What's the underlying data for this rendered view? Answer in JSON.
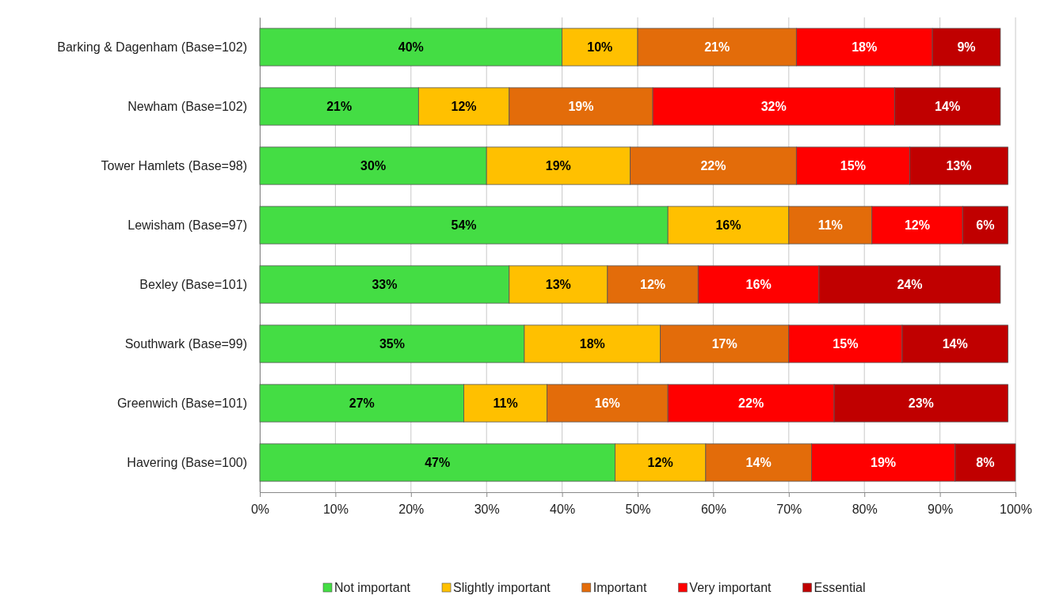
{
  "chart_data": {
    "type": "bar",
    "orientation": "horizontal",
    "stacked": true,
    "categories": [
      "Barking & Dagenham (Base=102)",
      "Newham (Base=102)",
      "Tower Hamlets (Base=98)",
      "Lewisham (Base=97)",
      "Bexley (Base=101)",
      "Southwark (Base=99)",
      "Greenwich (Base=101)",
      "Havering (Base=100)"
    ],
    "series": [
      {
        "name": "Not important",
        "color": "#44dd44",
        "values": [
          40,
          21,
          30,
          54,
          33,
          35,
          27,
          47
        ],
        "value_labels": [
          "40%",
          "21%",
          "30%",
          "54%",
          "33%",
          "35%",
          "27%",
          "47%"
        ]
      },
      {
        "name": "Slightly important",
        "color": "#ffc000",
        "values": [
          10,
          12,
          19,
          16,
          13,
          18,
          11,
          12
        ],
        "value_labels": [
          "10%",
          "12%",
          "19%",
          "16%",
          "13%",
          "18%",
          "11%",
          "12%"
        ]
      },
      {
        "name": "Important",
        "color": "#e36c0a",
        "values": [
          21,
          19,
          22,
          11,
          12,
          17,
          16,
          14
        ],
        "value_labels": [
          "21%",
          "19%",
          "22%",
          "11%",
          "12%",
          "17%",
          "16%",
          "14%"
        ]
      },
      {
        "name": "Very important",
        "color": "#ff0000",
        "values": [
          18,
          32,
          15,
          12,
          16,
          15,
          22,
          19
        ],
        "value_labels": [
          "18%",
          "32%",
          "15%",
          "12%",
          "16%",
          "15%",
          "22%",
          "19%"
        ]
      },
      {
        "name": "Essential",
        "color": "#c00000",
        "values": [
          9,
          14,
          13,
          6,
          24,
          14,
          23,
          8
        ],
        "value_labels": [
          "9%",
          "14%",
          "13%",
          "6%",
          "24%",
          "14%",
          "23%",
          "8%"
        ]
      }
    ],
    "xlim": [
      0,
      100
    ],
    "xticks": [
      {
        "value": 0,
        "label": "0%"
      },
      {
        "value": 10,
        "label": "10%"
      },
      {
        "value": 20,
        "label": "20%"
      },
      {
        "value": 30,
        "label": "30%"
      },
      {
        "value": 40,
        "label": "40%"
      },
      {
        "value": 50,
        "label": "50%"
      },
      {
        "value": 60,
        "label": "60%"
      },
      {
        "value": 70,
        "label": "70%"
      },
      {
        "value": 80,
        "label": "80%"
      },
      {
        "value": 90,
        "label": "90%"
      },
      {
        "value": 100,
        "label": "100%"
      }
    ],
    "grid": "x",
    "legend": "bottom"
  }
}
